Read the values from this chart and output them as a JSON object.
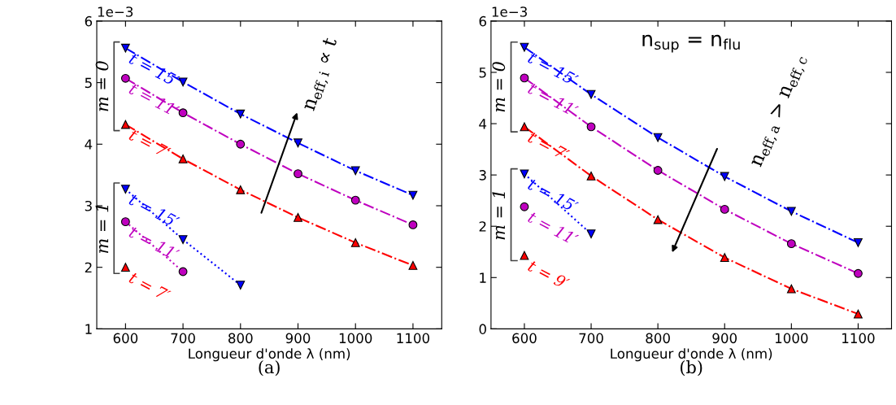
{
  "chart_data": [
    {
      "type": "line",
      "xlabel": "Longueur d'onde λ (nm)",
      "xlim": [
        550,
        1150
      ],
      "xticks": [
        600,
        700,
        800,
        900,
        1000,
        1100
      ],
      "ylim": [
        1,
        6
      ],
      "yticks": [
        1,
        2,
        3,
        4,
        5,
        6
      ],
      "grid": false,
      "legend": false,
      "x": [
        600,
        700,
        800,
        900,
        1000,
        1100
      ],
      "series": [
        {
          "name": "t = 15′",
          "color": "#0000ff",
          "marker": "triangle_down",
          "line_style": "dashdot",
          "values": [
            5.56,
            5.01,
            4.49,
            4.02,
            3.57,
            3.17
          ]
        },
        {
          "name": "t = 11′",
          "color": "#bf00bf",
          "marker": "circle",
          "line_style": "dashdot",
          "values": [
            5.07,
            4.51,
            4.0,
            3.52,
            3.09,
            2.69
          ]
        },
        {
          "name": "t = 7′",
          "color": "#ff0000",
          "marker": "triangle",
          "line_style": "dashdot",
          "values": [
            4.32,
            3.76,
            3.26,
            2.81,
            2.4,
            2.03
          ]
        },
        {
          "name": "t = 15′",
          "color": "#0000ff",
          "marker": "triangle_down",
          "line_style": "dotted",
          "values": [
            3.27,
            2.45,
            1.71,
            null,
            null,
            null
          ]
        },
        {
          "name": "t = 11′",
          "color": "#bf00bf",
          "marker": "circle",
          "line_style": "dotted",
          "values": [
            2.74,
            1.93,
            null,
            null,
            null,
            null
          ]
        },
        {
          "name": "t = 7′",
          "color": "#ff0000",
          "marker": "triangle",
          "line_style": "dotted",
          "values": [
            2.0,
            null,
            null,
            null,
            null,
            null
          ]
        }
      ],
      "annotations": [
        "1e−3",
        "m = 0",
        "m = 1",
        "n$_{eff,i}$ ∝ t",
        "(a)"
      ]
    },
    {
      "type": "line",
      "xlabel": "Longueur d'onde λ (nm)",
      "title": "n$_{sup}$ = n$_{flu}$",
      "xlim": [
        550,
        1150
      ],
      "xticks": [
        600,
        700,
        800,
        900,
        1000,
        1100
      ],
      "ylim": [
        0,
        6
      ],
      "yticks": [
        0,
        1,
        2,
        3,
        4,
        5,
        6
      ],
      "grid": false,
      "legend": false,
      "x": [
        600,
        700,
        800,
        900,
        1000,
        1100
      ],
      "series": [
        {
          "name": "t = 15′",
          "color": "#0000ff",
          "marker": "triangle_down",
          "line_style": "dashdot",
          "values": [
            5.49,
            4.57,
            3.73,
            2.97,
            2.29,
            1.68
          ]
        },
        {
          "name": "t = 11′",
          "color": "#bf00bf",
          "marker": "circle",
          "line_style": "dashdot",
          "values": [
            4.89,
            3.94,
            3.09,
            2.33,
            1.66,
            1.08
          ]
        },
        {
          "name": "t = 7′",
          "color": "#ff0000",
          "marker": "triangle",
          "line_style": "dashdot",
          "values": [
            3.94,
            2.98,
            2.13,
            1.39,
            0.78,
            0.29
          ]
        },
        {
          "name": "t = 15′",
          "color": "#0000ff",
          "marker": "triangle_down",
          "line_style": "dotted",
          "values": [
            3.02,
            1.85,
            null,
            null,
            null,
            null
          ]
        },
        {
          "name": "t = 11′",
          "color": "#bf00bf",
          "marker": "circle",
          "line_style": "dotted",
          "values": [
            2.38,
            null,
            null,
            null,
            null,
            null
          ]
        },
        {
          "name": "t = 9′",
          "color": "#ff0000",
          "marker": "triangle",
          "line_style": "dotted",
          "values": [
            1.43,
            null,
            null,
            null,
            null,
            null
          ]
        }
      ],
      "annotations": [
        "1e−3",
        "m = 0",
        "m = 1",
        "n$_{eff,a}$ > n$_{eff,c}$",
        "(b)"
      ]
    }
  ]
}
